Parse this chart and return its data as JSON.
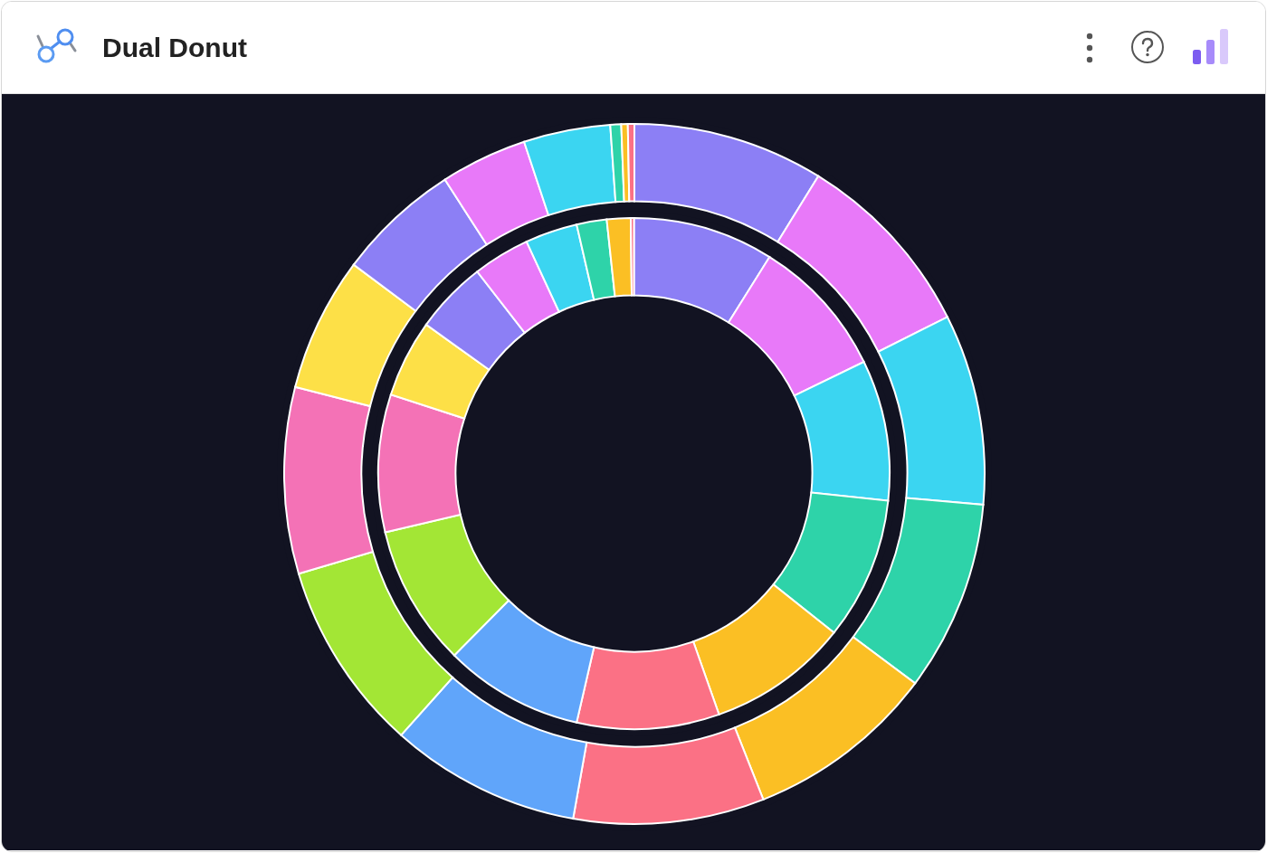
{
  "chart_data": [
    {
      "type": "donut",
      "title": "Dual Donut",
      "categories": [
        null,
        null,
        null,
        null,
        null,
        null,
        null,
        null,
        null,
        null,
        null,
        null,
        null,
        null,
        null,
        null
      ],
      "colors": [
        "#8c7ff5",
        "#e879f9",
        "#3bd5f1",
        "#2ed3a9",
        "#fbbf24",
        "#fb7185",
        "#60a5fa",
        "#a3e635",
        "#f472b6",
        "#fde047",
        "#8c7ff5",
        "#e879f9",
        "#3bd5f1",
        "#2ed3a9",
        "#fbbf24",
        "#fb7185"
      ],
      "values": [
        8.9,
        8.9,
        8.9,
        9.0,
        8.9,
        9.0,
        8.8,
        8.9,
        8.7,
        4.9,
        4.6,
        3.6,
        3.3,
        1.9,
        1.5,
        0.2
      ]
    },
    {
      "type": "donut",
      "categories": [
        null,
        null,
        null,
        null,
        null,
        null,
        null,
        null,
        null,
        null,
        null,
        null,
        null,
        null,
        null,
        null
      ],
      "colors": [
        "#8c7ff5",
        "#e879f9",
        "#3bd5f1",
        "#2ed3a9",
        "#fbbf24",
        "#fb7185",
        "#60a5fa",
        "#a3e635",
        "#f472b6",
        "#fde047",
        "#8c7ff5",
        "#e879f9",
        "#3bd5f1",
        "#2ed3a9",
        "#fbbf24",
        "#fb7185"
      ],
      "values": [
        8.8,
        8.8,
        8.8,
        8.8,
        8.8,
        8.8,
        8.8,
        8.8,
        8.6,
        6.2,
        5.7,
        4.0,
        4.0,
        0.5,
        0.3,
        0.3
      ]
    }
  ]
}
